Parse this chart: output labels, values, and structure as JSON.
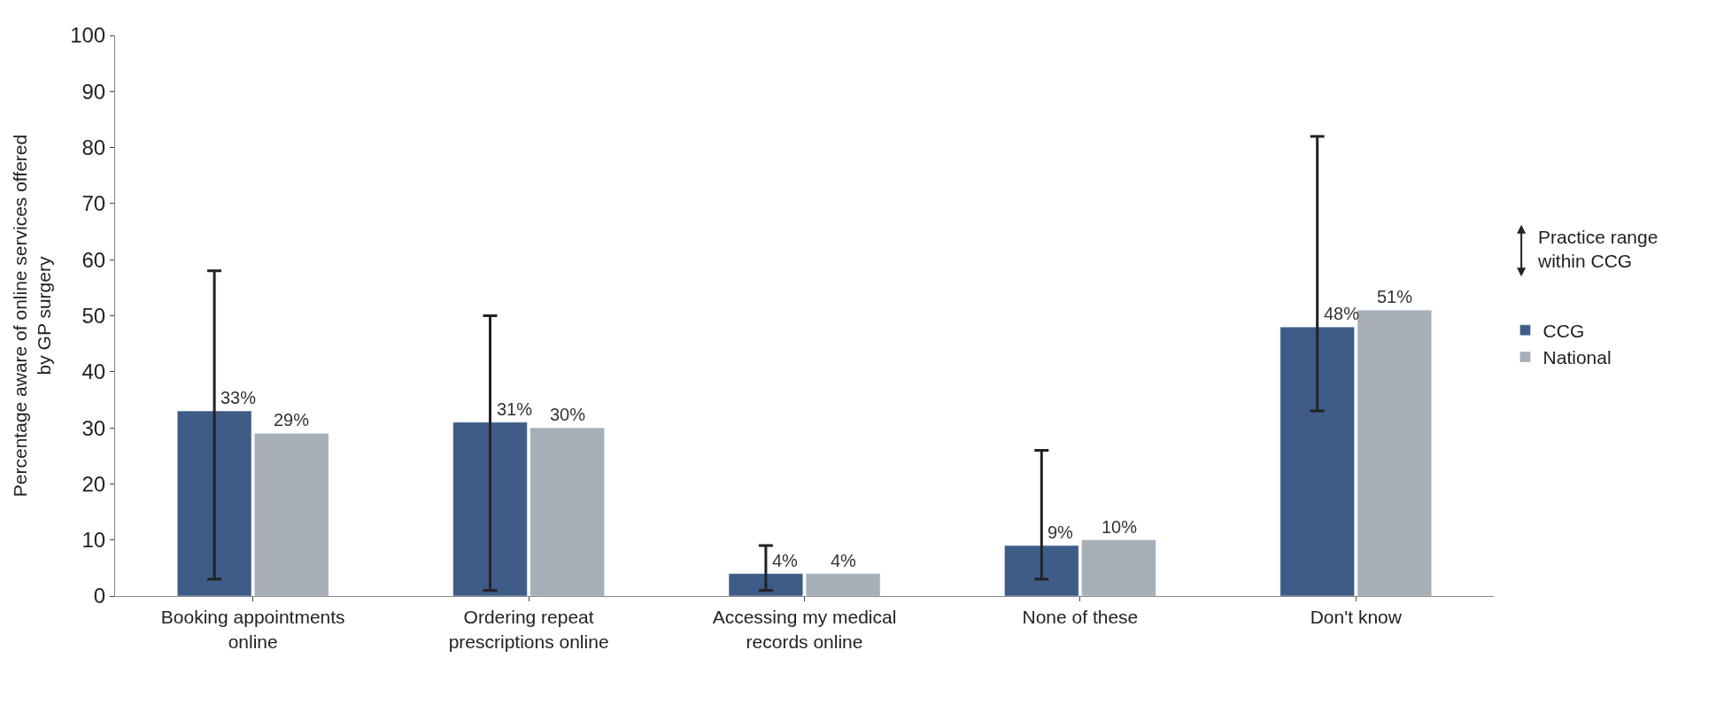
{
  "chart_data": {
    "type": "bar",
    "ylabel": "Percentage aware of online services offered by GP surgery",
    "categories": [
      "Booking appointments online",
      "Ordering repeat prescriptions online",
      "Accessing my medical records online",
      "None of these",
      "Don't know"
    ],
    "series": [
      {
        "name": "CCG",
        "color": "#3e5c87",
        "values": [
          33,
          31,
          4,
          9,
          48
        ],
        "value_labels": [
          "33%",
          "31%",
          "4%",
          "9%",
          "48%"
        ],
        "errors": [
          [
            3,
            58
          ],
          [
            1,
            50
          ],
          [
            1,
            9
          ],
          [
            3,
            26
          ],
          [
            33,
            82
          ]
        ]
      },
      {
        "name": "National",
        "color": "#a6aeb8",
        "values": [
          29,
          30,
          4,
          10,
          51
        ],
        "value_labels": [
          "29%",
          "30%",
          "4%",
          "10%",
          "51%"
        ]
      }
    ],
    "annotations": [
      "Practice range within CCG"
    ],
    "ylim": [
      0,
      100
    ],
    "yticks": [
      0,
      10,
      20,
      30,
      40,
      50,
      60,
      70,
      80,
      90,
      100
    ],
    "legend": "right"
  }
}
